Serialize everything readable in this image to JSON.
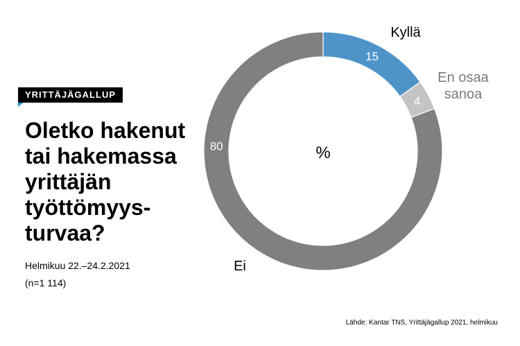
{
  "badge": "YRITTÄJÄGALLUP",
  "title": "Oletko hakenut\ntai hakemassa\nyrittäjän\ntyöttömyys-\nturvaa?",
  "date": "Helmikuu 22.–24.2.2021",
  "n": "(n=1 114)",
  "source": "Lähde: Kantar TNS, Yrittäjägallup 2021, helmikuu",
  "chart_data": {
    "type": "pie",
    "center_label": "%",
    "slices": [
      {
        "label": "Kyllä",
        "value": 15,
        "color": "#4f94c9",
        "label_color": "#000000"
      },
      {
        "label": "En osaa\nsanoa",
        "value": 4,
        "color": "#c4c4c4",
        "label_color": "#7a7a7a"
      },
      {
        "label": "Ei",
        "value": 80,
        "color": "#808080",
        "label_color": "#000000"
      }
    ]
  }
}
